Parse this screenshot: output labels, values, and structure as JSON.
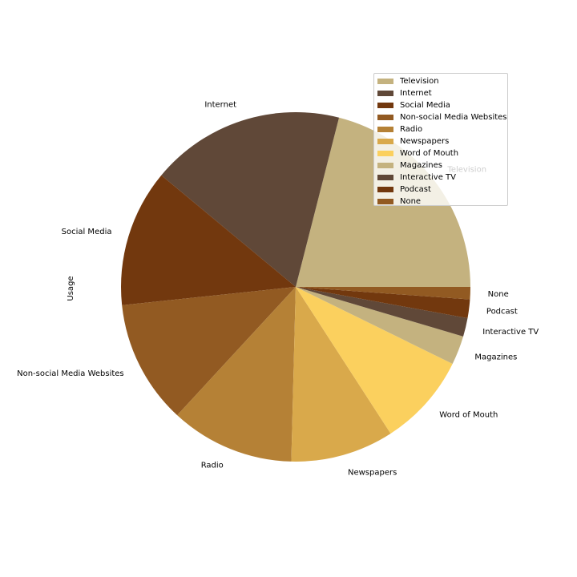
{
  "chart_data": {
    "type": "pie",
    "ylabel": "Usage",
    "slices": [
      {
        "label": "Television",
        "value": 22,
        "color": "#c4b27f"
      },
      {
        "label": "Internet",
        "value": 18.8,
        "color": "#604838"
      },
      {
        "label": "Social Media",
        "value": 13.3,
        "color": "#72380e"
      },
      {
        "label": "Non-social Media Websites",
        "value": 12,
        "color": "#925a22"
      },
      {
        "label": "Radio",
        "value": 12,
        "color": "#b58136"
      },
      {
        "label": "Newspapers",
        "value": 10,
        "color": "#d9a94b"
      },
      {
        "label": "Word of Mouth",
        "value": 9,
        "color": "#fbd05e"
      },
      {
        "label": "Magazines",
        "value": 2.8,
        "color": "#c4b27f"
      },
      {
        "label": "Interactive TV",
        "value": 1.8,
        "color": "#604838"
      },
      {
        "label": "Podcast",
        "value": 1.8,
        "color": "#72380e"
      },
      {
        "label": "None",
        "value": 1.2,
        "color": "#925a22"
      }
    ],
    "legend_position": "upper right",
    "start_angle_deg": 0,
    "direction": "counterclockwise"
  }
}
